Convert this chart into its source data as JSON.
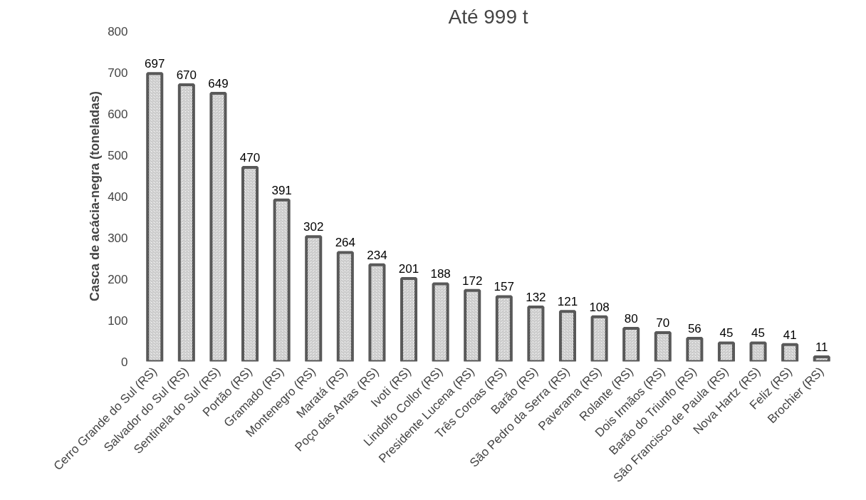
{
  "chart_data": {
    "type": "bar",
    "title": "Até 999 t",
    "ylabel": "Casca de acácia-negra (toneladas)",
    "categories": [
      "Cerro Grande do Sul (RS)",
      "Salvador do Sul (RS)",
      "Sentinela do Sul (RS)",
      "Portão (RS)",
      "Gramado (RS)",
      "Montenegro (RS)",
      "Maratá (RS)",
      "Poço das Antas (RS)",
      "Ivoti (RS)",
      "Lindolfo Collor (RS)",
      "Presidente Lucena (RS)",
      "Três Coroas (RS)",
      "Barão (RS)",
      "São Pedro da Serra (RS)",
      "Paverama (RS)",
      "Rolante (RS)",
      "Dois Irmãos (RS)",
      "Barão do Triunfo (RS)",
      "São Francisco de Paula (RS)",
      "Nova Hartz (RS)",
      "Feliz (RS)",
      "Brochier (RS)"
    ],
    "values": [
      697,
      670,
      649,
      470,
      391,
      302,
      264,
      234,
      201,
      188,
      172,
      157,
      132,
      121,
      108,
      80,
      70,
      56,
      45,
      45,
      41,
      11
    ],
    "color": "#595959",
    "ylim": [
      0,
      800
    ],
    "yticks": [
      0,
      100,
      200,
      300,
      400,
      500,
      600,
      700,
      800
    ],
    "data_labels": true,
    "grid": false
  }
}
